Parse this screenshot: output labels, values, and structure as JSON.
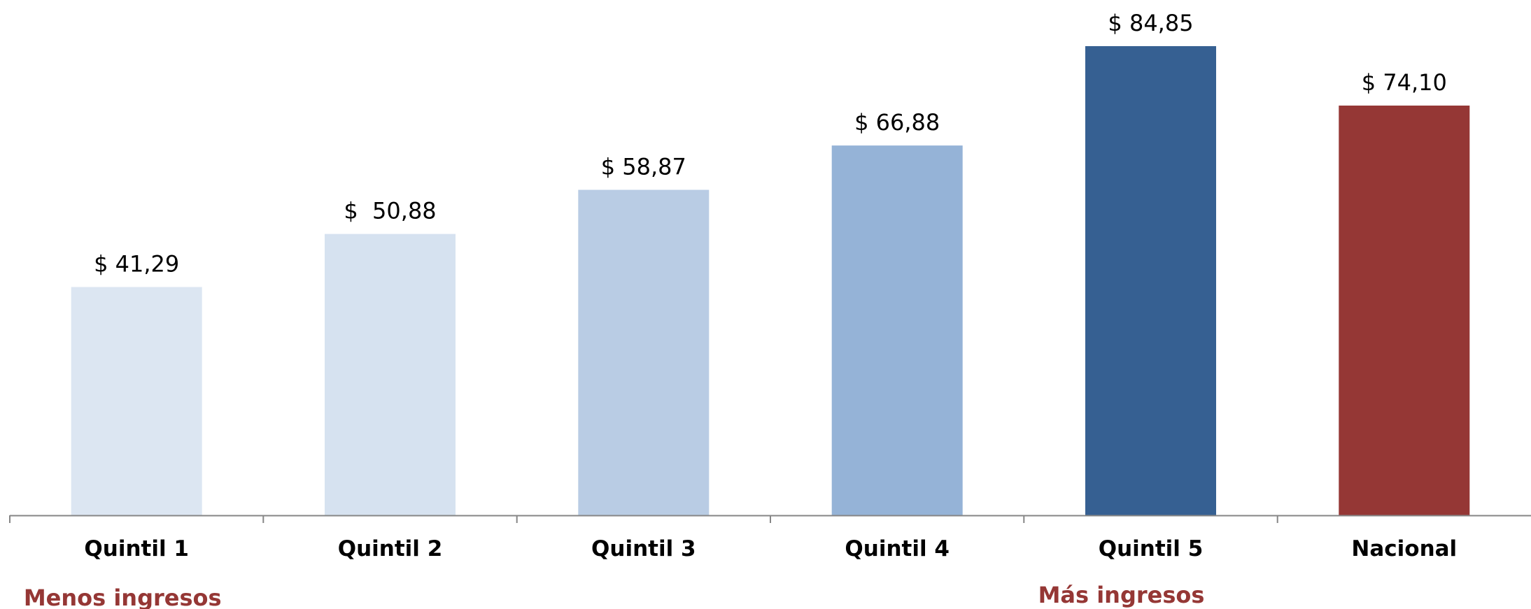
{
  "chart_data": {
    "type": "bar",
    "categories": [
      "Quintil 1",
      "Quintil 2",
      "Quintil 3",
      "Quintil 4",
      "Quintil 5",
      "Nacional"
    ],
    "values": [
      41.29,
      50.88,
      58.87,
      66.88,
      84.85,
      74.1
    ],
    "value_labels": [
      "$ 41,29",
      "$  50,88",
      "$ 58,87",
      "$ 66,88",
      "$ 84,85",
      "$ 74,10"
    ],
    "bar_colors": [
      "#dce6f2",
      "#d6e2f0",
      "#b9cce4",
      "#95b3d7",
      "#366092",
      "#953735"
    ],
    "ylim": [
      0,
      84.85
    ],
    "grid": false,
    "legend": "none",
    "annotations": [
      {
        "text": "Menos ingresos",
        "category": "Quintil 1",
        "color": "#953735"
      },
      {
        "text": "Más ingresos",
        "category": "Quintil 5",
        "color": "#953735"
      }
    ]
  }
}
